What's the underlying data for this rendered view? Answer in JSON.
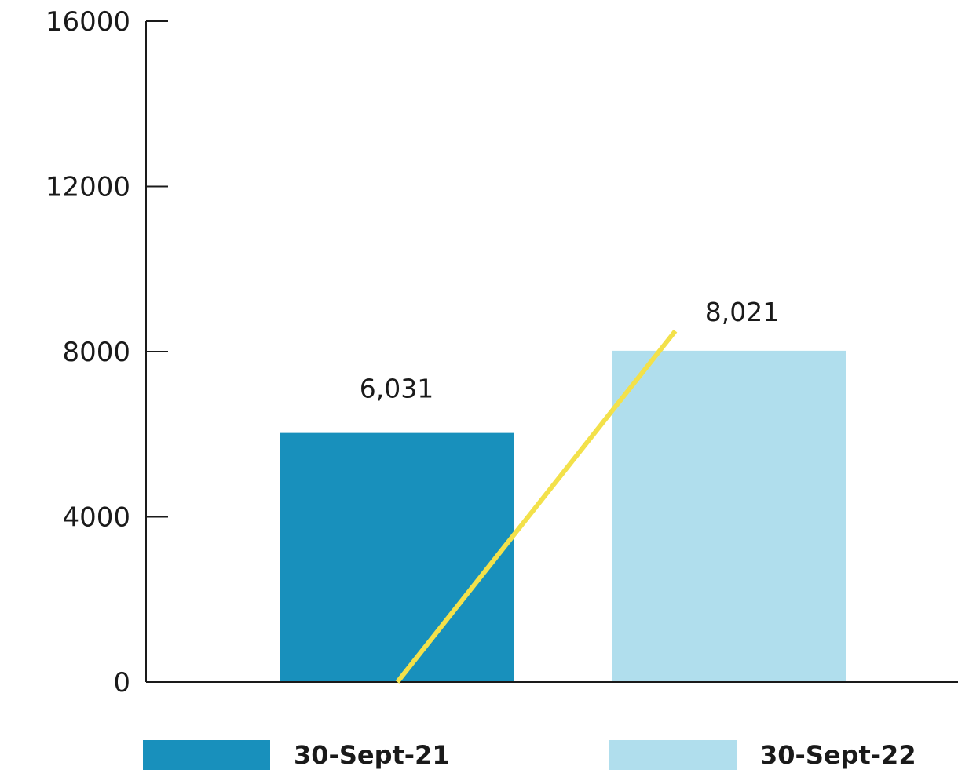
{
  "chart_data": {
    "type": "bar",
    "categories": [
      "30-Sept-21",
      "30-Sept-22"
    ],
    "values": [
      6031,
      8021
    ],
    "value_labels": [
      "6,031",
      "8,021"
    ],
    "colors": [
      "#1890bc",
      "#b0deed"
    ],
    "yticks": [
      0,
      4000,
      8000,
      12000,
      16000
    ],
    "ylim": [
      0,
      16000
    ],
    "title": "",
    "xlabel": "",
    "ylabel": "",
    "grid": false,
    "legend_position": "bottom",
    "trend_line": {
      "color": "#f3e14a",
      "from": 0,
      "to": 8500
    }
  },
  "legend": [
    {
      "label": "30-Sept-21",
      "color": "#1890bc"
    },
    {
      "label": "30-Sept-22",
      "color": "#b0deed"
    }
  ]
}
